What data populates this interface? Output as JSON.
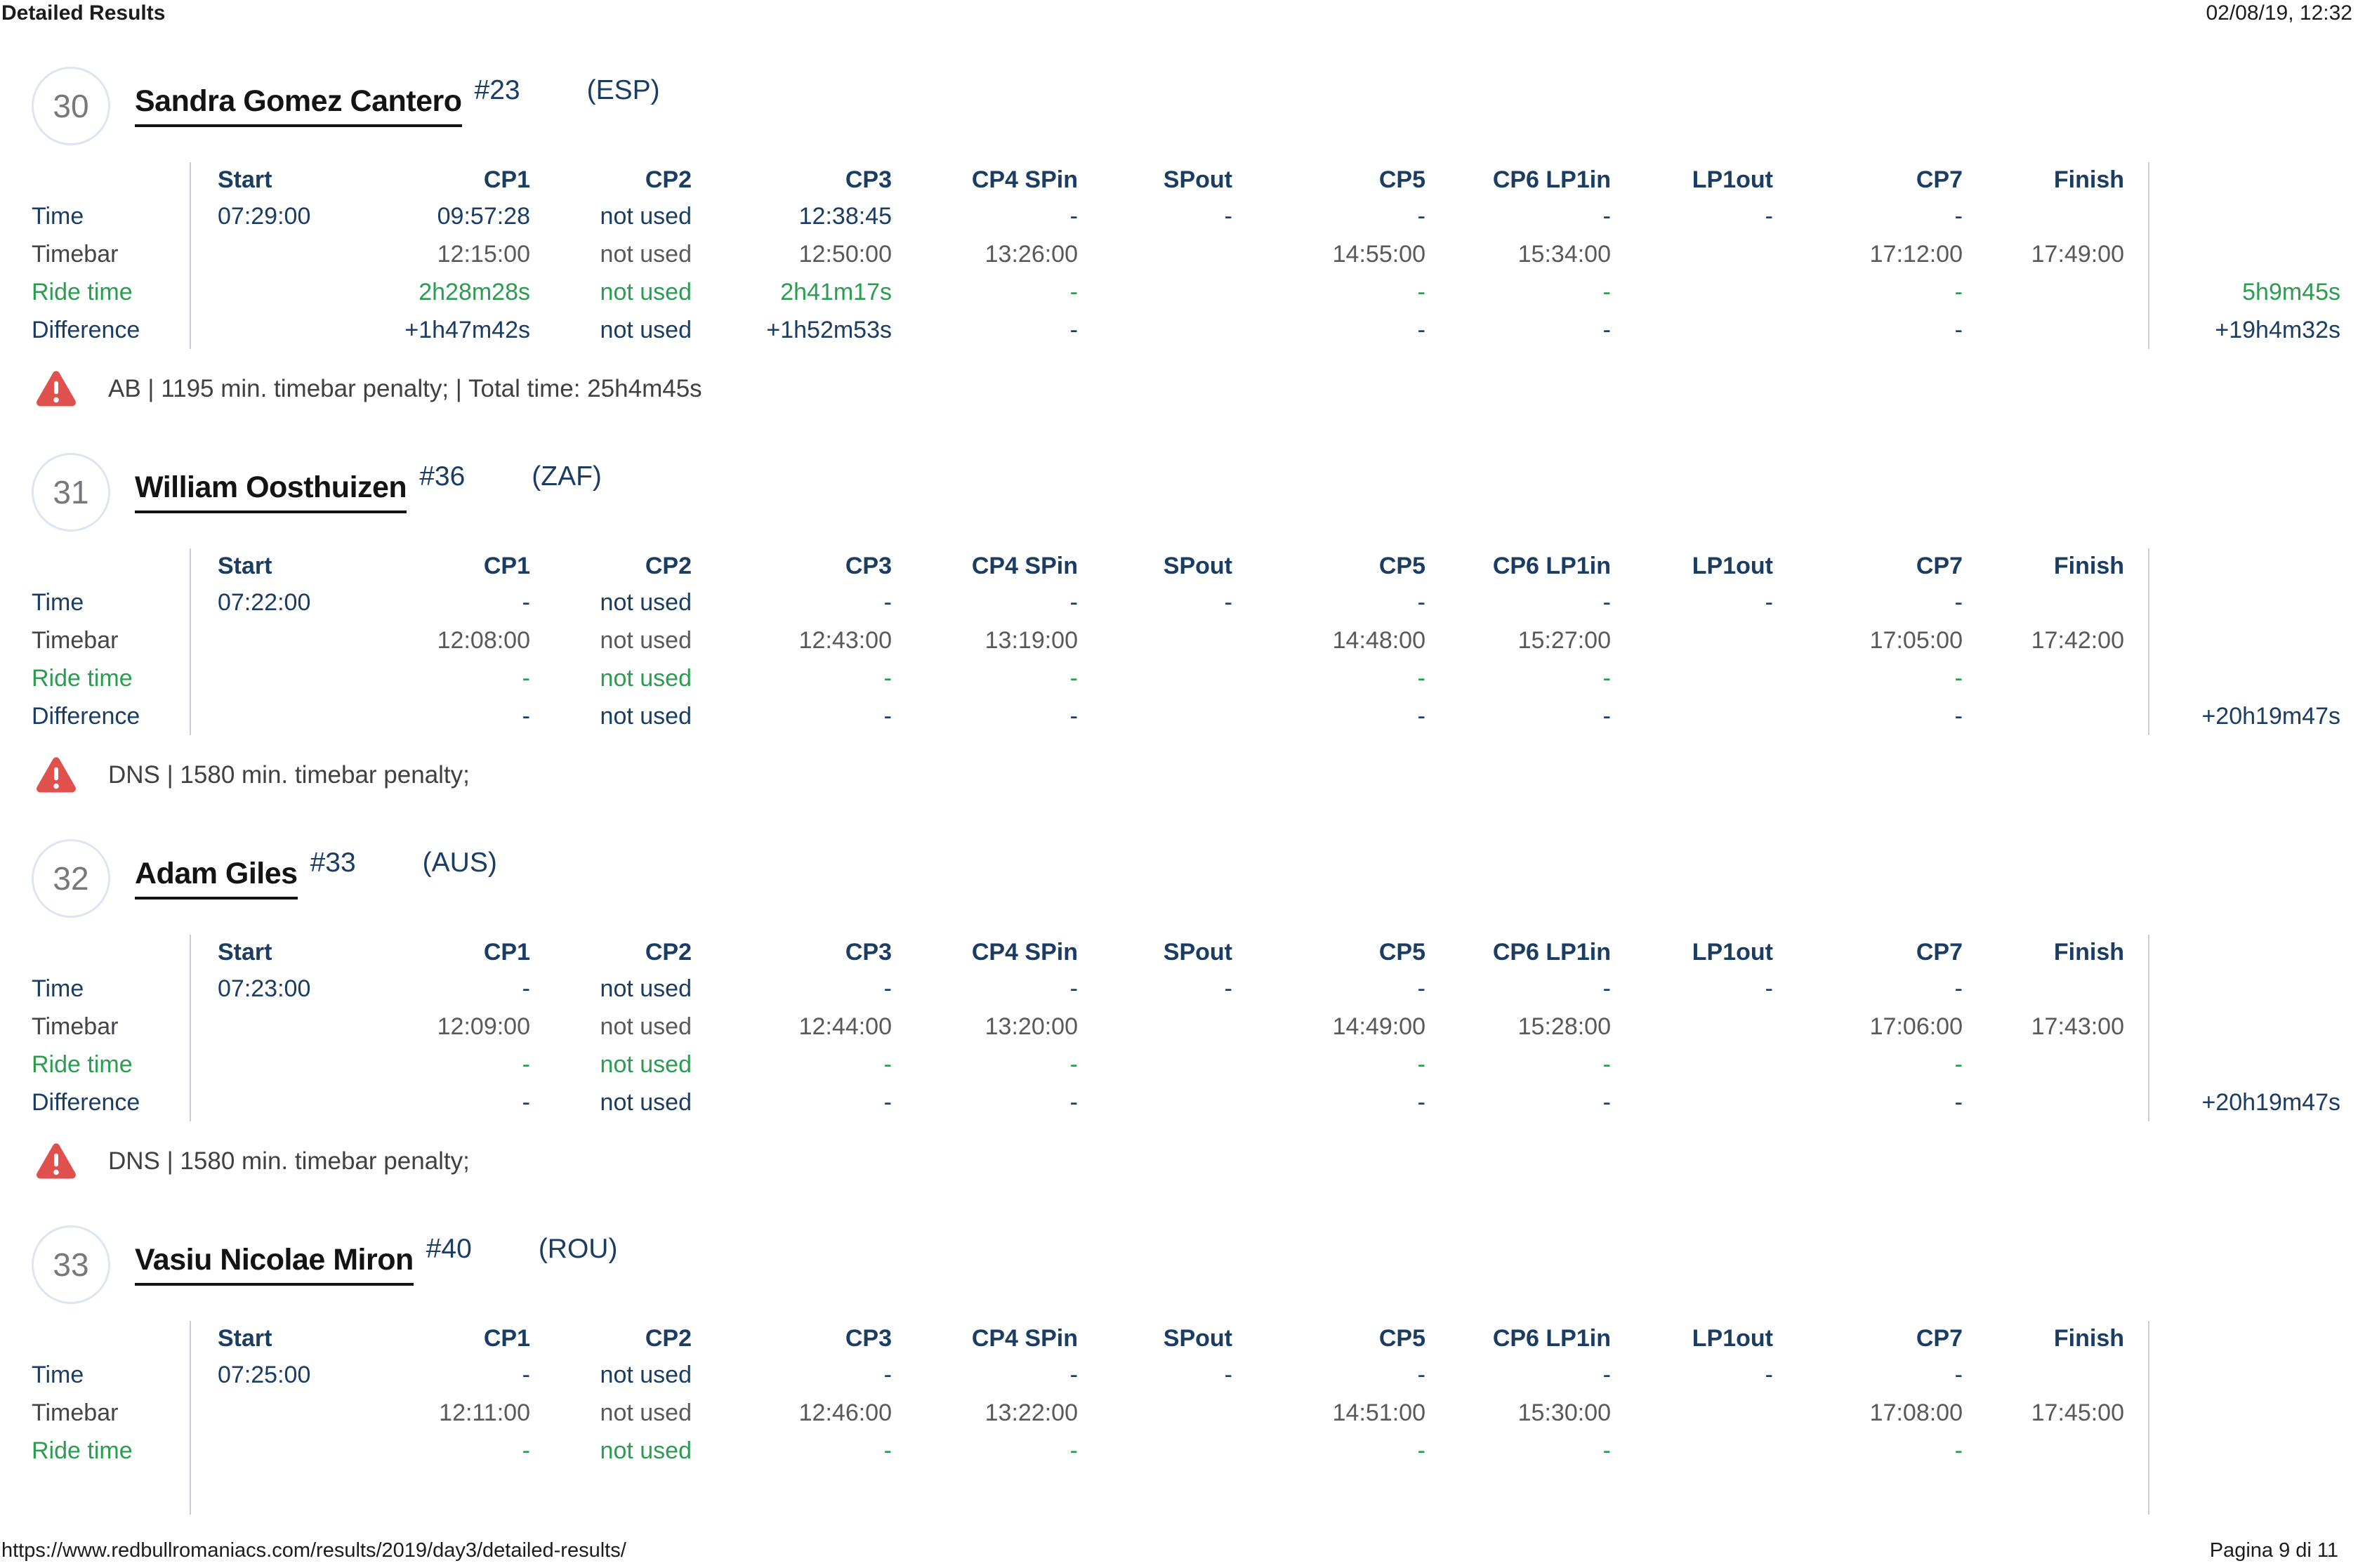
{
  "page": {
    "header_left": "Detailed Results",
    "header_right": "02/08/19, 12:32",
    "footer_left": "https://www.redbullromaniacs.com/results/2019/day3/detailed-results/",
    "footer_right": "Pagina 9 di 11"
  },
  "colors": {
    "navy_text": "#1b3c63",
    "timebar_gray": "#58595c",
    "ridetime_green": "#2b9c50",
    "warning_red": "#e0514e",
    "rank_gray": "#77787b",
    "rule_gray": "#c9ced6"
  },
  "icons": {
    "warning": "alert-triangle-icon"
  },
  "columns": [
    "Start",
    "CP1",
    "CP2",
    "CP3",
    "CP4 SPin",
    "SPout",
    "CP5",
    "CP6 LP1in",
    "LP1out",
    "CP7",
    "Finish"
  ],
  "riders": [
    {
      "rank": "30",
      "name": "Sandra Gomez Cantero",
      "bib": "#23",
      "country": "(ESP)",
      "rows": [
        {
          "label": "Time",
          "type": "time",
          "cells": [
            "07:29:00",
            "09:57:28",
            "not used",
            "12:38:45",
            "-",
            "-",
            "-",
            "-",
            "-",
            "-",
            ""
          ],
          "total": ""
        },
        {
          "label": "Timebar",
          "type": "timebar",
          "cells": [
            "",
            "12:15:00",
            "not used",
            "12:50:00",
            "13:26:00",
            "",
            "14:55:00",
            "15:34:00",
            "",
            "17:12:00",
            "17:49:00"
          ],
          "total": ""
        },
        {
          "label": "Ride time",
          "type": "ridetime",
          "cells": [
            "",
            "2h28m28s",
            "not used",
            "2h41m17s",
            "-",
            "",
            "-",
            "-",
            "",
            "-",
            ""
          ],
          "total": "5h9m45s"
        },
        {
          "label": "Difference",
          "type": "difference",
          "cells": [
            "",
            "+1h47m42s",
            "not used",
            "+1h52m53s",
            "-",
            "",
            "-",
            "-",
            "",
            "-",
            ""
          ],
          "total": "+19h4m32s"
        }
      ],
      "warning": "AB | 1195 min. timebar penalty; | Total time: 25h4m45s",
      "cut": false
    },
    {
      "rank": "31",
      "name": "William Oosthuizen",
      "bib": "#36",
      "country": "(ZAF)",
      "rows": [
        {
          "label": "Time",
          "type": "time",
          "cells": [
            "07:22:00",
            "-",
            "not used",
            "-",
            "-",
            "-",
            "-",
            "-",
            "-",
            "-",
            ""
          ],
          "total": ""
        },
        {
          "label": "Timebar",
          "type": "timebar",
          "cells": [
            "",
            "12:08:00",
            "not used",
            "12:43:00",
            "13:19:00",
            "",
            "14:48:00",
            "15:27:00",
            "",
            "17:05:00",
            "17:42:00"
          ],
          "total": ""
        },
        {
          "label": "Ride time",
          "type": "ridetime",
          "cells": [
            "",
            "-",
            "not used",
            "-",
            "-",
            "",
            "-",
            "-",
            "",
            "-",
            ""
          ],
          "total": ""
        },
        {
          "label": "Difference",
          "type": "difference",
          "cells": [
            "",
            "-",
            "not used",
            "-",
            "-",
            "",
            "-",
            "-",
            "",
            "-",
            ""
          ],
          "total": "+20h19m47s"
        }
      ],
      "warning": "DNS | 1580 min. timebar penalty;",
      "cut": false
    },
    {
      "rank": "32",
      "name": "Adam Giles",
      "bib": "#33",
      "country": "(AUS)",
      "rows": [
        {
          "label": "Time",
          "type": "time",
          "cells": [
            "07:23:00",
            "-",
            "not used",
            "-",
            "-",
            "-",
            "-",
            "-",
            "-",
            "-",
            ""
          ],
          "total": ""
        },
        {
          "label": "Timebar",
          "type": "timebar",
          "cells": [
            "",
            "12:09:00",
            "not used",
            "12:44:00",
            "13:20:00",
            "",
            "14:49:00",
            "15:28:00",
            "",
            "17:06:00",
            "17:43:00"
          ],
          "total": ""
        },
        {
          "label": "Ride time",
          "type": "ridetime",
          "cells": [
            "",
            "-",
            "not used",
            "-",
            "-",
            "",
            "-",
            "-",
            "",
            "-",
            ""
          ],
          "total": ""
        },
        {
          "label": "Difference",
          "type": "difference",
          "cells": [
            "",
            "-",
            "not used",
            "-",
            "-",
            "",
            "-",
            "-",
            "",
            "-",
            ""
          ],
          "total": "+20h19m47s"
        }
      ],
      "warning": "DNS | 1580 min. timebar penalty;",
      "cut": false
    },
    {
      "rank": "33",
      "name": "Vasiu Nicolae Miron",
      "bib": "#40",
      "country": "(ROU)",
      "rows": [
        {
          "label": "Time",
          "type": "time",
          "cells": [
            "07:25:00",
            "-",
            "not used",
            "-",
            "-",
            "-",
            "-",
            "-",
            "-",
            "-",
            ""
          ],
          "total": ""
        },
        {
          "label": "Timebar",
          "type": "timebar",
          "cells": [
            "",
            "12:11:00",
            "not used",
            "12:46:00",
            "13:22:00",
            "",
            "14:51:00",
            "15:30:00",
            "",
            "17:08:00",
            "17:45:00"
          ],
          "total": ""
        },
        {
          "label": "Ride time",
          "type": "ridetime",
          "cells": [
            "",
            "-",
            "not used",
            "-",
            "-",
            "",
            "-",
            "-",
            "",
            "-",
            ""
          ],
          "total": ""
        }
      ],
      "warning": null,
      "cut": true
    }
  ]
}
